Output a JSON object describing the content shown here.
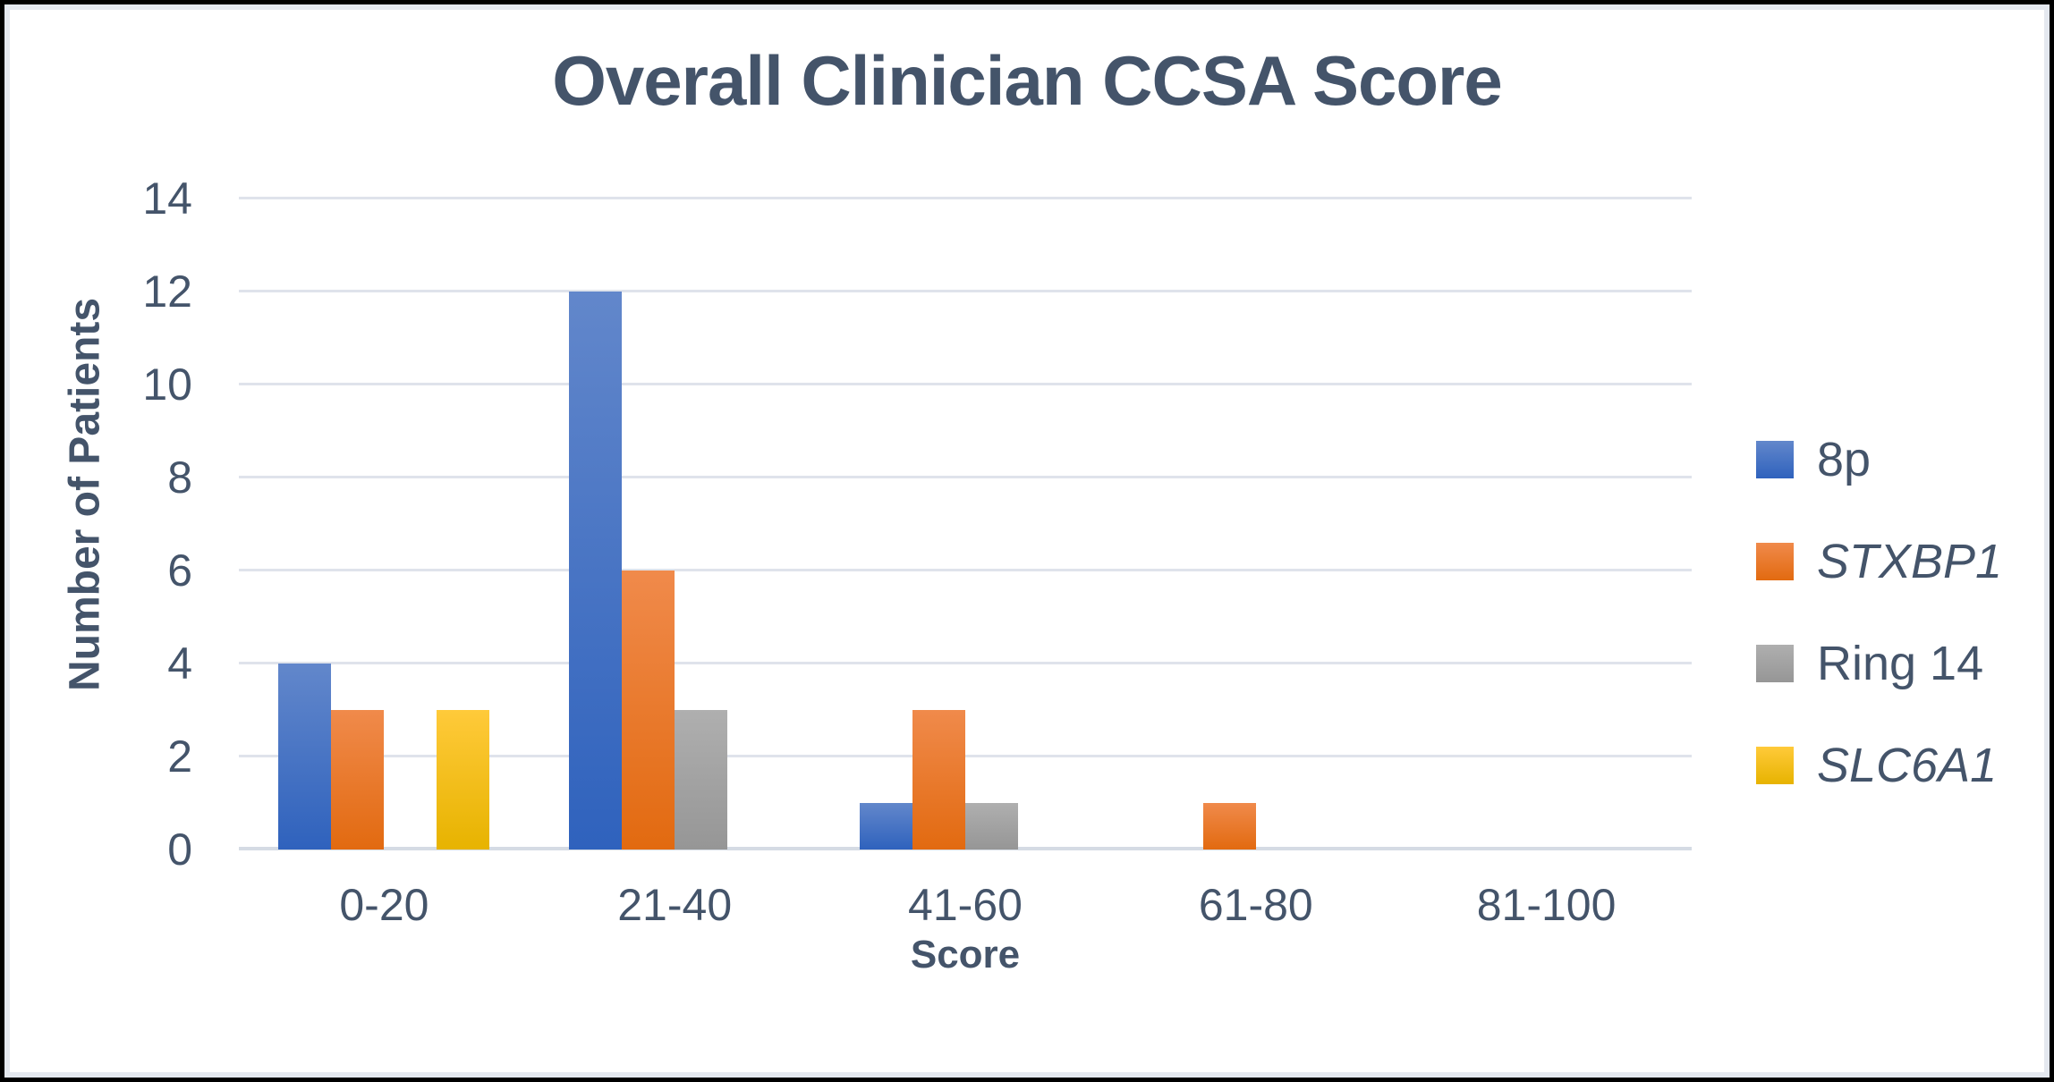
{
  "chart_data": {
    "type": "bar",
    "title": "Overall Clinician CCSA Score",
    "xlabel": "Score",
    "ylabel": "Number of Patients",
    "categories": [
      "0-20",
      "21-40",
      "41-60",
      "61-80",
      "81-100"
    ],
    "series": [
      {
        "name": "8p",
        "italic": false,
        "values": [
          4,
          12,
          1,
          0,
          0
        ],
        "color_top": "#6287CB",
        "color_bottom": "#2F62BD"
      },
      {
        "name": "STXBP1",
        "italic": true,
        "values": [
          3,
          6,
          3,
          1,
          0
        ],
        "color_top": "#F08A4B",
        "color_bottom": "#E26A10"
      },
      {
        "name": "Ring 14",
        "italic": false,
        "values": [
          0,
          3,
          1,
          0,
          0
        ],
        "color_top": "#AFAFAF",
        "color_bottom": "#969696"
      },
      {
        "name": "SLC6A1",
        "italic": true,
        "values": [
          3,
          0,
          0,
          0,
          0
        ],
        "color_top": "#FFCA3A",
        "color_bottom": "#E7B300"
      }
    ],
    "ylim": [
      0,
      14
    ],
    "yticks": [
      0,
      2,
      4,
      6,
      8,
      10,
      12,
      14
    ],
    "grid": true,
    "legend_position": "right",
    "colors": {
      "text": "#44546A",
      "gridline": "#DFE3EB",
      "axis_line": "#D5DBE4",
      "frame_border": "#000000",
      "frame_inner": "#E4E8EF"
    }
  }
}
